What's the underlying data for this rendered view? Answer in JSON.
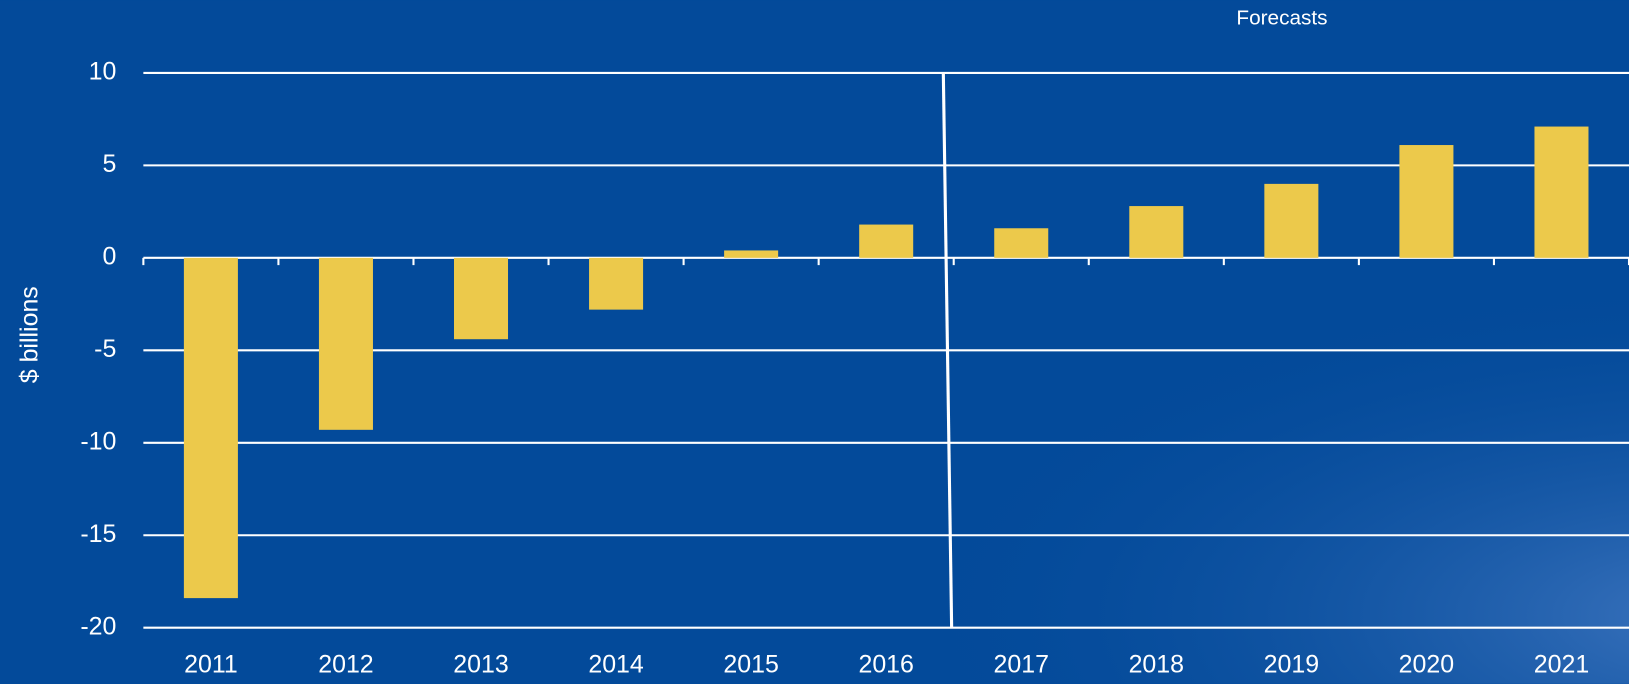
{
  "chart_data": {
    "type": "bar",
    "annotation": "Forecasts",
    "y_label": "$ billions",
    "categories": [
      "2011",
      "2012",
      "2013",
      "2014",
      "2015",
      "2016",
      "2017",
      "2018",
      "2019",
      "2020",
      "2021"
    ],
    "values": [
      -18.4,
      -9.3,
      -4.4,
      -2.8,
      0.4,
      1.8,
      1.6,
      2.8,
      4.0,
      6.1,
      7.1
    ],
    "color": "#ecc94b",
    "ylim": [
      -20,
      10
    ],
    "yticks": [
      -20,
      -15,
      -10,
      -5,
      0,
      5,
      10
    ],
    "grid": true
  }
}
